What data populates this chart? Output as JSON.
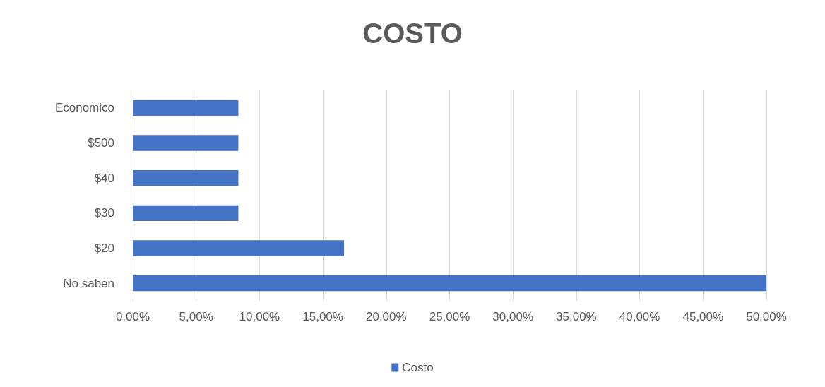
{
  "chart_data": {
    "type": "bar",
    "title": "COSTO",
    "orientation": "horizontal",
    "categories": [
      "Economico",
      "$500",
      "$40",
      "$30",
      "$20",
      "No saben"
    ],
    "series": [
      {
        "name": "Costo",
        "color": "#4472c4",
        "values": [
          8.33,
          8.33,
          8.33,
          8.33,
          16.67,
          50
        ]
      }
    ],
    "xlim": [
      0,
      50
    ],
    "xticks": [
      {
        "value": 0,
        "label": "0,00%"
      },
      {
        "value": 5,
        "label": "5,00%"
      },
      {
        "value": 10,
        "label": "10,00%"
      },
      {
        "value": 15,
        "label": "15,00%"
      },
      {
        "value": 20,
        "label": "20,00%"
      },
      {
        "value": 25,
        "label": "25,00%"
      },
      {
        "value": 30,
        "label": "30,00%"
      },
      {
        "value": 35,
        "label": "35,00%"
      },
      {
        "value": 40,
        "label": "40,00%"
      },
      {
        "value": 45,
        "label": "45,00%"
      },
      {
        "value": 50,
        "label": "50,00%"
      }
    ],
    "grid": "x",
    "legend": "bottom"
  }
}
